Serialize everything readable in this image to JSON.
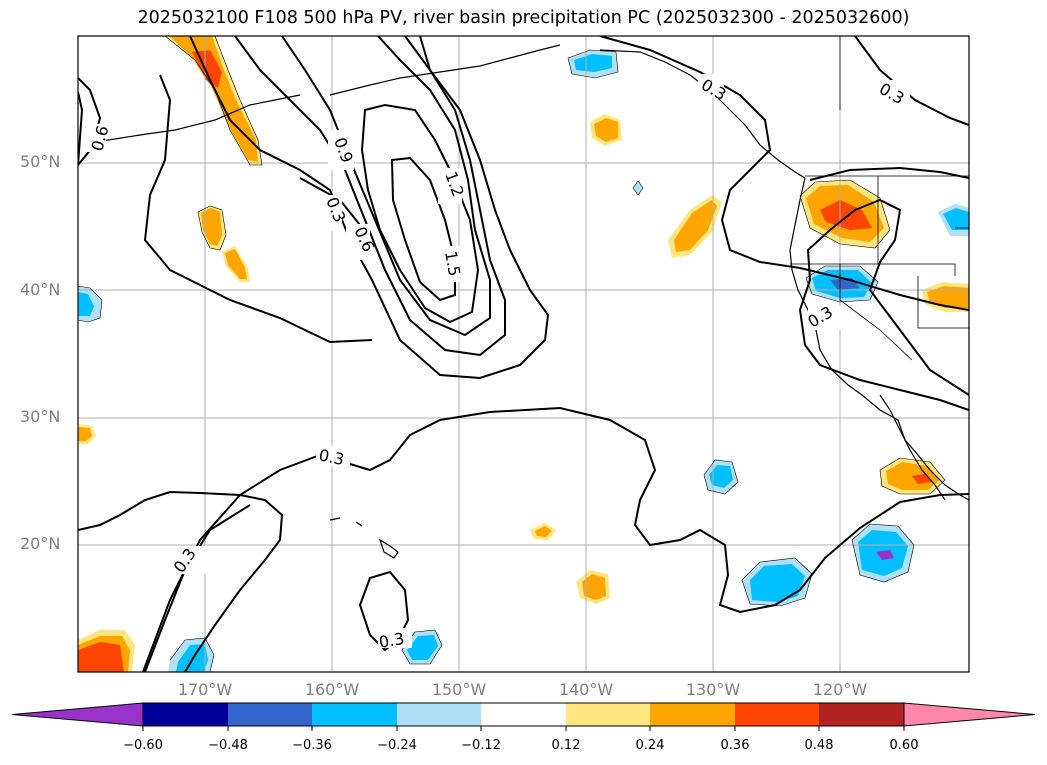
{
  "title": "2025032100 F108 500 hPa PV, river basin precipitation PC (2025032300 - 2025032600)",
  "lat_labels": [
    "50°N",
    "40°N",
    "30°N",
    "20°N"
  ],
  "lon_labels": [
    "170°W",
    "160°W",
    "150°W",
    "140°W",
    "130°W",
    "120°W"
  ],
  "contour_labels": [
    "0.6",
    "0.9",
    "0.3",
    "0.6",
    "1.2",
    "1.5",
    "0.3",
    "0.3",
    "0.3",
    "0.3",
    "0.3",
    "0.3"
  ],
  "colorbar": {
    "colors": [
      "#9933cc",
      "#000099",
      "#3366cc",
      "#00bfff",
      "#b0e0f8",
      "#ffffff",
      "#ffe680",
      "#ffa500",
      "#ff4500",
      "#b22222",
      "#ff88aa"
    ],
    "labels": [
      "−0.60",
      "−0.48",
      "−0.36",
      "−0.24",
      "−0.12",
      "0.12",
      "0.24",
      "0.36",
      "0.48",
      "0.60"
    ]
  }
}
